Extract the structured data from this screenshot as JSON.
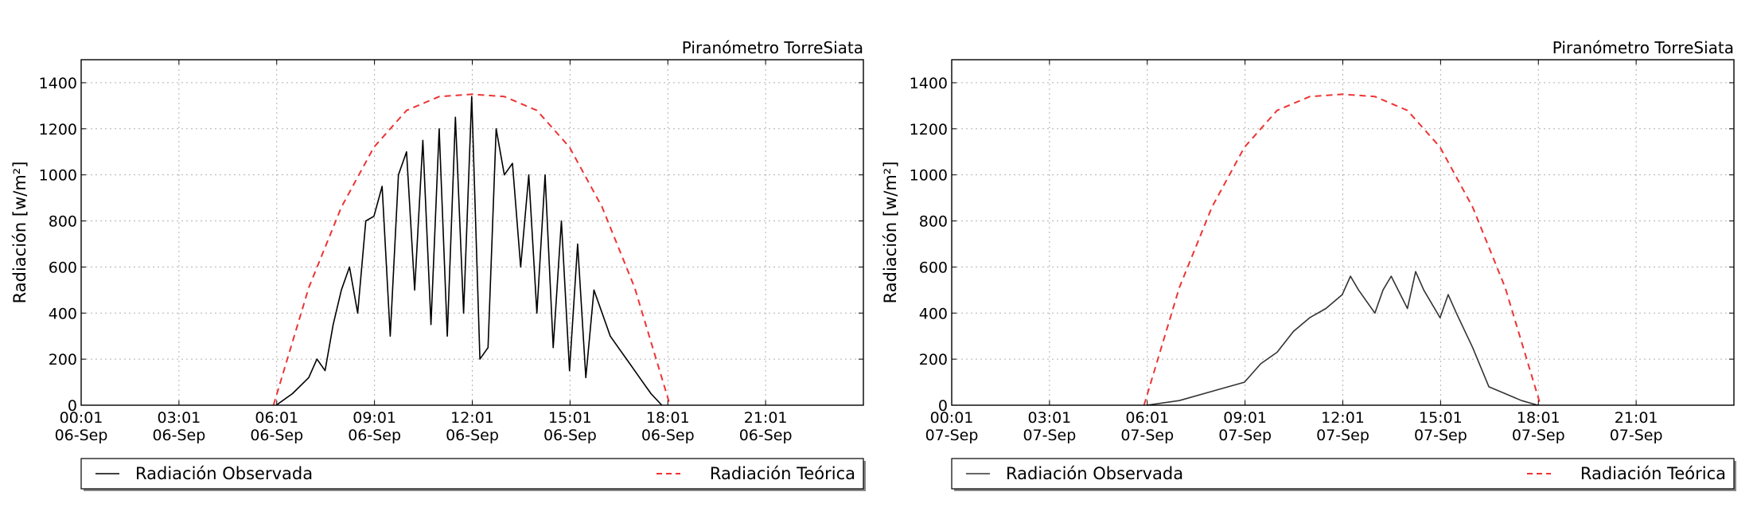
{
  "chart_data": [
    {
      "type": "line",
      "title": "Piranómetro TorreSiata",
      "ylabel": "Radiación [w/m²]",
      "ylim": [
        0,
        1500
      ],
      "xlim": [
        "06-Sep 00:01",
        "07-Sep 00:01"
      ],
      "grid": true,
      "legend": "bottom",
      "xticks": [
        {
          "time": "00:01",
          "date": "06-Sep"
        },
        {
          "time": "03:01",
          "date": "06-Sep"
        },
        {
          "time": "06:01",
          "date": "06-Sep"
        },
        {
          "time": "09:01",
          "date": "06-Sep"
        },
        {
          "time": "12:01",
          "date": "06-Sep"
        },
        {
          "time": "15:01",
          "date": "06-Sep"
        },
        {
          "time": "18:01",
          "date": "06-Sep"
        },
        {
          "time": "21:01",
          "date": "06-Sep"
        }
      ],
      "yticks": [
        0,
        200,
        400,
        600,
        800,
        1000,
        1200,
        1400
      ],
      "series": [
        {
          "name": "Radiación Observada",
          "color": "#000000",
          "style": "solid",
          "x": [
            "06:00",
            "06:30",
            "07:00",
            "07:15",
            "07:30",
            "07:45",
            "08:00",
            "08:15",
            "08:30",
            "08:45",
            "09:00",
            "09:15",
            "09:30",
            "09:45",
            "10:00",
            "10:15",
            "10:30",
            "10:45",
            "11:00",
            "11:15",
            "11:30",
            "11:45",
            "12:00",
            "12:15",
            "12:30",
            "12:45",
            "13:00",
            "13:15",
            "13:30",
            "13:45",
            "14:00",
            "14:15",
            "14:30",
            "14:45",
            "15:00",
            "15:15",
            "15:30",
            "15:45",
            "16:00",
            "16:15",
            "16:30",
            "16:45",
            "17:00",
            "17:15",
            "17:30",
            "17:50"
          ],
          "y": [
            0,
            50,
            120,
            200,
            150,
            350,
            500,
            600,
            400,
            800,
            820,
            950,
            300,
            1000,
            1100,
            500,
            1150,
            350,
            1200,
            300,
            1250,
            400,
            1340,
            200,
            250,
            1200,
            1000,
            1050,
            600,
            1000,
            400,
            1000,
            250,
            800,
            150,
            700,
            120,
            500,
            400,
            300,
            250,
            200,
            150,
            100,
            50,
            0
          ]
        },
        {
          "name": "Radiación Teórica",
          "color": "#ee3333",
          "style": "dashed",
          "x": [
            "05:55",
            "07:00",
            "08:00",
            "09:00",
            "10:00",
            "11:00",
            "12:00",
            "13:00",
            "14:00",
            "15:00",
            "16:00",
            "17:00",
            "18:05"
          ],
          "y": [
            0,
            510,
            860,
            1120,
            1280,
            1340,
            1350,
            1340,
            1280,
            1120,
            860,
            510,
            0
          ]
        }
      ]
    },
    {
      "type": "line",
      "title": "Piranómetro TorreSiata",
      "ylabel": "Radiación [w/m²]",
      "ylim": [
        0,
        1500
      ],
      "xlim": [
        "07-Sep 00:01",
        "08-Sep 00:01"
      ],
      "grid": true,
      "legend": "bottom",
      "xticks": [
        {
          "time": "00:01",
          "date": "07-Sep"
        },
        {
          "time": "03:01",
          "date": "07-Sep"
        },
        {
          "time": "06:01",
          "date": "07-Sep"
        },
        {
          "time": "09:01",
          "date": "07-Sep"
        },
        {
          "time": "12:01",
          "date": "07-Sep"
        },
        {
          "time": "15:01",
          "date": "07-Sep"
        },
        {
          "time": "18:01",
          "date": "07-Sep"
        },
        {
          "time": "21:01",
          "date": "07-Sep"
        }
      ],
      "yticks": [
        0,
        200,
        400,
        600,
        800,
        1000,
        1200,
        1400
      ],
      "series": [
        {
          "name": "Radiación Observada",
          "color": "#333333",
          "style": "solid",
          "x": [
            "06:00",
            "07:00",
            "08:00",
            "09:00",
            "09:30",
            "10:00",
            "10:30",
            "11:00",
            "11:30",
            "12:00",
            "12:15",
            "12:30",
            "13:00",
            "13:15",
            "13:30",
            "14:00",
            "14:15",
            "14:30",
            "15:00",
            "15:15",
            "15:30",
            "16:00",
            "16:30",
            "17:00",
            "17:30",
            "18:00"
          ],
          "y": [
            0,
            20,
            60,
            100,
            180,
            230,
            320,
            380,
            420,
            480,
            560,
            500,
            400,
            500,
            560,
            420,
            580,
            500,
            380,
            480,
            400,
            250,
            80,
            50,
            20,
            0
          ]
        },
        {
          "name": "Radiación Teórica",
          "color": "#ee3333",
          "style": "dashed",
          "x": [
            "05:55",
            "07:00",
            "08:00",
            "09:00",
            "10:00",
            "11:00",
            "12:00",
            "13:00",
            "14:00",
            "15:00",
            "16:00",
            "17:00",
            "18:05"
          ],
          "y": [
            0,
            510,
            860,
            1120,
            1280,
            1340,
            1350,
            1340,
            1280,
            1120,
            860,
            510,
            0
          ]
        }
      ]
    }
  ]
}
